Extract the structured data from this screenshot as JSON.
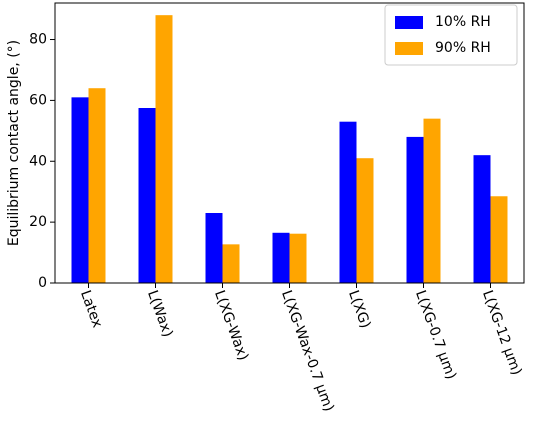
{
  "chart_data": {
    "type": "bar",
    "y_label": "Equilibrium contact angle, (°)",
    "categories": [
      "Latex",
      "L(Wax)",
      "L(XG-Wax)",
      "L(XG-Wax-0.7 µm)",
      "L(XG)",
      "L(XG-0.7 µm)",
      "L(XG-12 µm)"
    ],
    "series": [
      {
        "name": "10% RH",
        "color": "#0000ff",
        "values": [
          61,
          57.5,
          23,
          16.5,
          53,
          48,
          42
        ]
      },
      {
        "name": "90% RH",
        "color": "#ffa500",
        "values": [
          64,
          88,
          12.7,
          16.2,
          41,
          54,
          28.5
        ]
      }
    ],
    "ylim": [
      0,
      92
    ],
    "yticks": [
      0,
      20,
      40,
      60,
      80
    ],
    "grid": false,
    "legend": "upper right"
  }
}
